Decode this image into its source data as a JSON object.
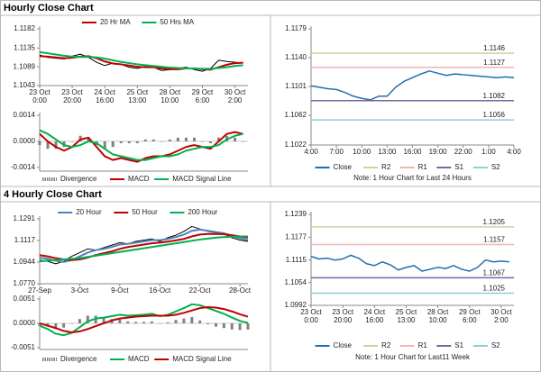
{
  "headings": [
    "Hourly Close Chart",
    "4 Hourly Close Chart"
  ],
  "chart_data": [
    {
      "type": "line",
      "x": [
        0,
        5,
        10,
        15,
        20,
        25,
        30,
        35,
        40,
        45,
        50,
        55,
        60,
        65,
        70,
        75,
        80,
        85,
        90,
        95,
        100,
        105,
        110,
        115,
        120,
        125
      ],
      "xlim": [
        0,
        128
      ],
      "xticks": [
        {
          "value": 0,
          "label": "23 Oct\n0:00"
        },
        {
          "value": 20,
          "label": "23 Oct\n20:00"
        },
        {
          "value": 40,
          "label": "24 Oct\n16:00"
        },
        {
          "value": 60,
          "label": "25 Oct\n13:00"
        },
        {
          "value": 80,
          "label": "28 Oct\n10:00"
        },
        {
          "value": 100,
          "label": "29 Oct\n6:00"
        },
        {
          "value": 120,
          "label": "30 Oct\n2:00"
        }
      ],
      "ylim": [
        1.1043,
        1.1182
      ],
      "yticks": [
        1.1043,
        1.1089,
        1.1135,
        1.1182
      ],
      "series": [
        {
          "color": "#000000",
          "values": [
            1.1118,
            1.1112,
            1.111,
            1.1108,
            1.1115,
            1.112,
            1.1112,
            1.11,
            1.1092,
            1.1098,
            1.1095,
            1.1088,
            1.1085,
            1.109,
            1.1088,
            1.108,
            1.1082,
            1.1085,
            1.1088,
            1.1082,
            1.1078,
            1.1085,
            1.1105,
            1.1102,
            1.11,
            1.1098
          ]
        },
        {
          "name": "20 Hr MA",
          "color": "#c00000",
          "values": [
            1.1115,
            1.1114,
            1.1112,
            1.111,
            1.1111,
            1.1114,
            1.1115,
            1.111,
            1.1102,
            1.1097,
            1.1095,
            1.1092,
            1.1089,
            1.1088,
            1.1088,
            1.1085,
            1.1083,
            1.1083,
            1.1085,
            1.1085,
            1.1083,
            1.1082,
            1.1088,
            1.1094,
            1.1098,
            1.1099
          ]
        },
        {
          "name": "50 Hrs MA",
          "color": "#00b050",
          "values": [
            1.1125,
            1.1122,
            1.1119,
            1.1116,
            1.1114,
            1.1113,
            1.1113,
            1.1112,
            1.1109,
            1.1105,
            1.1101,
            1.1098,
            1.1095,
            1.1093,
            1.1091,
            1.1089,
            1.1087,
            1.1086,
            1.1085,
            1.1085,
            1.1084,
            1.1084,
            1.1086,
            1.1088,
            1.1091,
            1.1093
          ]
        }
      ]
    },
    {
      "type": "macd",
      "x": [
        0,
        5,
        10,
        15,
        20,
        25,
        30,
        35,
        40,
        45,
        50,
        55,
        60,
        65,
        70,
        75,
        80,
        85,
        90,
        95,
        100,
        105,
        110,
        115,
        120,
        125
      ],
      "xlim": [
        0,
        128
      ],
      "ylim": [
        -0.0016,
        0.0014
      ],
      "yticks": [
        -0.0014,
        {
          "value": 0,
          "label": "0.0000"
        },
        0.0014
      ],
      "series": [
        {
          "name": "Divergence",
          "color": "#808080",
          "mark": "bar",
          "values": [
            -0.0002,
            -0.0004,
            -0.0004,
            -0.0003,
            0,
            0.0003,
            0.0002,
            -0.0002,
            -0.0004,
            -0.0003,
            -0.0001,
            -0.0001,
            -0.0001,
            0.0001,
            0.0001,
            0,
            0.0001,
            0.0002,
            0.0002,
            0.0002,
            0,
            -0.0001,
            0.0002,
            0.0003,
            0.0002,
            0
          ]
        },
        {
          "name": "MACD",
          "color": "#c00000",
          "mark": "line",
          "values": [
            0.0004,
            0,
            -0.0003,
            -0.0005,
            -0.0003,
            0.0001,
            0.0002,
            -0.0003,
            -0.0008,
            -0.001,
            -0.0009,
            -0.001,
            -0.0011,
            -0.0009,
            -0.0008,
            -0.0008,
            -0.0007,
            -0.0005,
            -0.0003,
            -0.0002,
            -0.0003,
            -0.0004,
            0,
            0.0004,
            0.0005,
            0.0004
          ]
        },
        {
          "name": "MACD Signal Line",
          "color": "#00b050",
          "mark": "line",
          "values": [
            0.0006,
            0.0004,
            0.0001,
            -0.0002,
            -0.0003,
            -0.0002,
            0,
            -0.0001,
            -0.0004,
            -0.0007,
            -0.0008,
            -0.0009,
            -0.001,
            -0.001,
            -0.0009,
            -0.0008,
            -0.0008,
            -0.0007,
            -0.0005,
            -0.0004,
            -0.0003,
            -0.0003,
            -0.0002,
            0.0001,
            0.0003,
            0.0004
          ]
        }
      ]
    },
    {
      "type": "line",
      "x": [
        0,
        1,
        2,
        3,
        4,
        5,
        6,
        7,
        8,
        9,
        10,
        11,
        12,
        13,
        14,
        15,
        16,
        17,
        18,
        19,
        20,
        21,
        22,
        23,
        24
      ],
      "xlim": [
        0,
        24
      ],
      "xticks": [
        {
          "value": 0,
          "label": "4:00"
        },
        {
          "value": 3,
          "label": "7:00"
        },
        {
          "value": 6,
          "label": "10:00"
        },
        {
          "value": 9,
          "label": "13:00"
        },
        {
          "value": 12,
          "label": "16:00"
        },
        {
          "value": 15,
          "label": "19:00"
        },
        {
          "value": 18,
          "label": "22:00"
        },
        {
          "value": 21,
          "label": "1:00"
        },
        {
          "value": 24,
          "label": "4:00"
        }
      ],
      "ylim": [
        1.1022,
        1.1179
      ],
      "yticks": [
        1.1022,
        1.1062,
        1.1101,
        {
          "value": 1.114,
          "label": "1.1140"
        },
        1.1179
      ],
      "series": [
        {
          "name": "Close",
          "color": "#1f6fb4",
          "values": [
            1.1102,
            1.11,
            1.1098,
            1.1097,
            1.1093,
            1.1088,
            1.1085,
            1.1083,
            1.1088,
            1.1088,
            1.11,
            1.1108,
            1.1113,
            1.1118,
            1.1122,
            1.1119,
            1.1116,
            1.1118,
            1.1117,
            1.1116,
            1.1115,
            1.1114,
            1.1113,
            1.1114,
            1.1113
          ]
        }
      ],
      "levels": [
        {
          "name": "R2",
          "value": 1.1146,
          "color": "#c4d79b"
        },
        {
          "name": "R1",
          "value": 1.1127,
          "color": "#f2b5b5"
        },
        {
          "name": "S1",
          "value": 1.1082,
          "color": "#8064a2"
        },
        {
          "name": "S2",
          "value": 1.1056,
          "color": "#92cddc"
        }
      ],
      "note": "Note: 1 Hour Chart for Last 24 Hours"
    },
    {
      "type": "line",
      "x": [
        0,
        5,
        10,
        15,
        20,
        25,
        30,
        35,
        40,
        45,
        50,
        55,
        60,
        65,
        70,
        75,
        80,
        85,
        90,
        95,
        100,
        105,
        110,
        115,
        120,
        125,
        130
      ],
      "xlim": [
        0,
        130
      ],
      "xticks": [
        {
          "value": 0,
          "label": "27-Sep"
        },
        {
          "value": 25,
          "label": "3-Oct"
        },
        {
          "value": 50,
          "label": "9-Oct"
        },
        {
          "value": 75,
          "label": "16-Oct"
        },
        {
          "value": 100,
          "label": "22-Oct"
        },
        {
          "value": 125,
          "label": "28-Oct"
        }
      ],
      "ylim": [
        1.077,
        1.1291
      ],
      "yticks": [
        {
          "value": 1.077,
          "label": "1.0770"
        },
        1.0944,
        1.1117,
        1.1291
      ],
      "series": [
        {
          "color": "#000000",
          "values": [
            1.096,
            1.095,
            1.093,
            1.095,
            1.099,
            1.102,
            1.105,
            1.104,
            1.106,
            1.108,
            1.11,
            1.109,
            1.111,
            1.112,
            1.113,
            1.111,
            1.114,
            1.116,
            1.119,
            1.123,
            1.121,
            1.119,
            1.118,
            1.117,
            1.114,
            1.112,
            1.111
          ]
        },
        {
          "name": "20 Hour",
          "color": "#4f81bd",
          "values": [
            1.098,
            1.097,
            1.0955,
            1.0945,
            1.096,
            1.099,
            1.102,
            1.104,
            1.105,
            1.1065,
            1.1085,
            1.109,
            1.11,
            1.111,
            1.112,
            1.112,
            1.113,
            1.1145,
            1.1165,
            1.1195,
            1.1205,
            1.1195,
            1.1185,
            1.1175,
            1.1155,
            1.1135,
            1.112
          ]
        },
        {
          "name": "50 Hour",
          "color": "#c00000",
          "values": [
            1.1,
            1.099,
            1.0975,
            1.0965,
            1.096,
            1.0965,
            1.098,
            1.1,
            1.1015,
            1.103,
            1.105,
            1.1065,
            1.1075,
            1.1085,
            1.1095,
            1.11,
            1.1108,
            1.1118,
            1.113,
            1.115,
            1.1165,
            1.117,
            1.117,
            1.1168,
            1.116,
            1.115,
            1.114
          ]
        },
        {
          "name": "200 Hour",
          "color": "#00b050",
          "values": [
            1.095,
            1.0955,
            1.096,
            1.0965,
            1.097,
            1.0975,
            1.0985,
            1.0995,
            1.1005,
            1.1015,
            1.1025,
            1.1035,
            1.1045,
            1.1055,
            1.1065,
            1.1075,
            1.1085,
            1.1095,
            1.1105,
            1.1115,
            1.1125,
            1.1133,
            1.114,
            1.1145,
            1.1148,
            1.115,
            1.115
          ]
        }
      ]
    },
    {
      "type": "macd",
      "x": [
        0,
        5,
        10,
        15,
        20,
        25,
        30,
        35,
        40,
        45,
        50,
        55,
        60,
        65,
        70,
        75,
        80,
        85,
        90,
        95,
        100,
        105,
        110,
        115,
        120,
        125,
        130
      ],
      "xlim": [
        0,
        130
      ],
      "ylim": [
        -0.0055,
        0.0051
      ],
      "yticks": [
        -0.0051,
        {
          "value": 0,
          "label": "0.0000"
        },
        0.0051
      ],
      "series": [
        {
          "name": "Divergence",
          "color": "#808080",
          "mark": "bar",
          "values": [
            -0.0005,
            -0.0007,
            -0.0012,
            -0.0009,
            -0.0001,
            0.0009,
            0.0016,
            0.0016,
            0.0012,
            0.0009,
            0.0008,
            0.0004,
            0.0003,
            0.0003,
            0.0004,
            -0.0001,
            0.0002,
            0.0007,
            0.001,
            0.0013,
            0.0006,
            -0.0002,
            -0.0007,
            -0.001,
            -0.0013,
            -0.0014,
            -0.0013
          ]
        },
        {
          "name": "MACD",
          "color": "#00b050",
          "mark": "line",
          "values": [
            -0.0005,
            -0.0012,
            -0.0022,
            -0.0025,
            -0.002,
            -0.0008,
            0.0004,
            0.001,
            0.0012,
            0.0015,
            0.0018,
            0.0016,
            0.0017,
            0.0018,
            0.002,
            0.0015,
            0.0018,
            0.0025,
            0.0032,
            0.004,
            0.0038,
            0.0032,
            0.0026,
            0.002,
            0.0012,
            0.0005,
            0.0001
          ]
        },
        {
          "name": "MACD Signal Line",
          "color": "#c00000",
          "mark": "line",
          "values": [
            0,
            -0.0005,
            -0.001,
            -0.0016,
            -0.0019,
            -0.0017,
            -0.0012,
            -0.0006,
            0,
            0.0006,
            0.001,
            0.0012,
            0.0014,
            0.0015,
            0.0016,
            0.0016,
            0.0016,
            0.0018,
            0.0022,
            0.0027,
            0.0032,
            0.0034,
            0.0033,
            0.003,
            0.0025,
            0.0019,
            0.0014
          ]
        }
      ]
    },
    {
      "type": "line",
      "x": [
        0,
        5,
        10,
        15,
        20,
        25,
        30,
        35,
        40,
        45,
        50,
        55,
        60,
        65,
        70,
        75,
        80,
        85,
        90,
        95,
        100,
        105,
        110,
        115,
        120,
        125
      ],
      "xlim": [
        0,
        128
      ],
      "xticks": [
        {
          "value": 0,
          "label": "23 Oct\n0:00"
        },
        {
          "value": 20,
          "label": "23 Oct\n20:00"
        },
        {
          "value": 40,
          "label": "24 Oct\n16:00"
        },
        {
          "value": 60,
          "label": "25 Oct\n13:00"
        },
        {
          "value": 80,
          "label": "28 Oct\n10:00"
        },
        {
          "value": 100,
          "label": "29 Oct\n6:00"
        },
        {
          "value": 120,
          "label": "30 Oct\n2:00"
        }
      ],
      "ylim": [
        1.0992,
        1.1239
      ],
      "yticks": [
        1.0992,
        1.1054,
        1.1115,
        1.1177,
        1.1239
      ],
      "series": [
        {
          "name": "Close",
          "color": "#1f6fb4",
          "values": [
            1.1125,
            1.1118,
            1.112,
            1.1115,
            1.1118,
            1.1128,
            1.112,
            1.1105,
            1.11,
            1.111,
            1.1102,
            1.1088,
            1.1095,
            1.11,
            1.1085,
            1.109,
            1.1095,
            1.1092,
            1.11,
            1.109,
            1.1085,
            1.1095,
            1.1115,
            1.111,
            1.1112,
            1.111
          ]
        }
      ],
      "levels": [
        {
          "name": "R2",
          "value": 1.1205,
          "color": "#c4d79b"
        },
        {
          "name": "R1",
          "value": 1.1157,
          "color": "#f2b5b5"
        },
        {
          "name": "S1",
          "value": 1.1067,
          "color": "#8064a2"
        },
        {
          "name": "S2",
          "value": 1.1025,
          "color": "#92cddc"
        }
      ],
      "note": "Note: 1 Hour Chart for Last11 Week"
    }
  ]
}
